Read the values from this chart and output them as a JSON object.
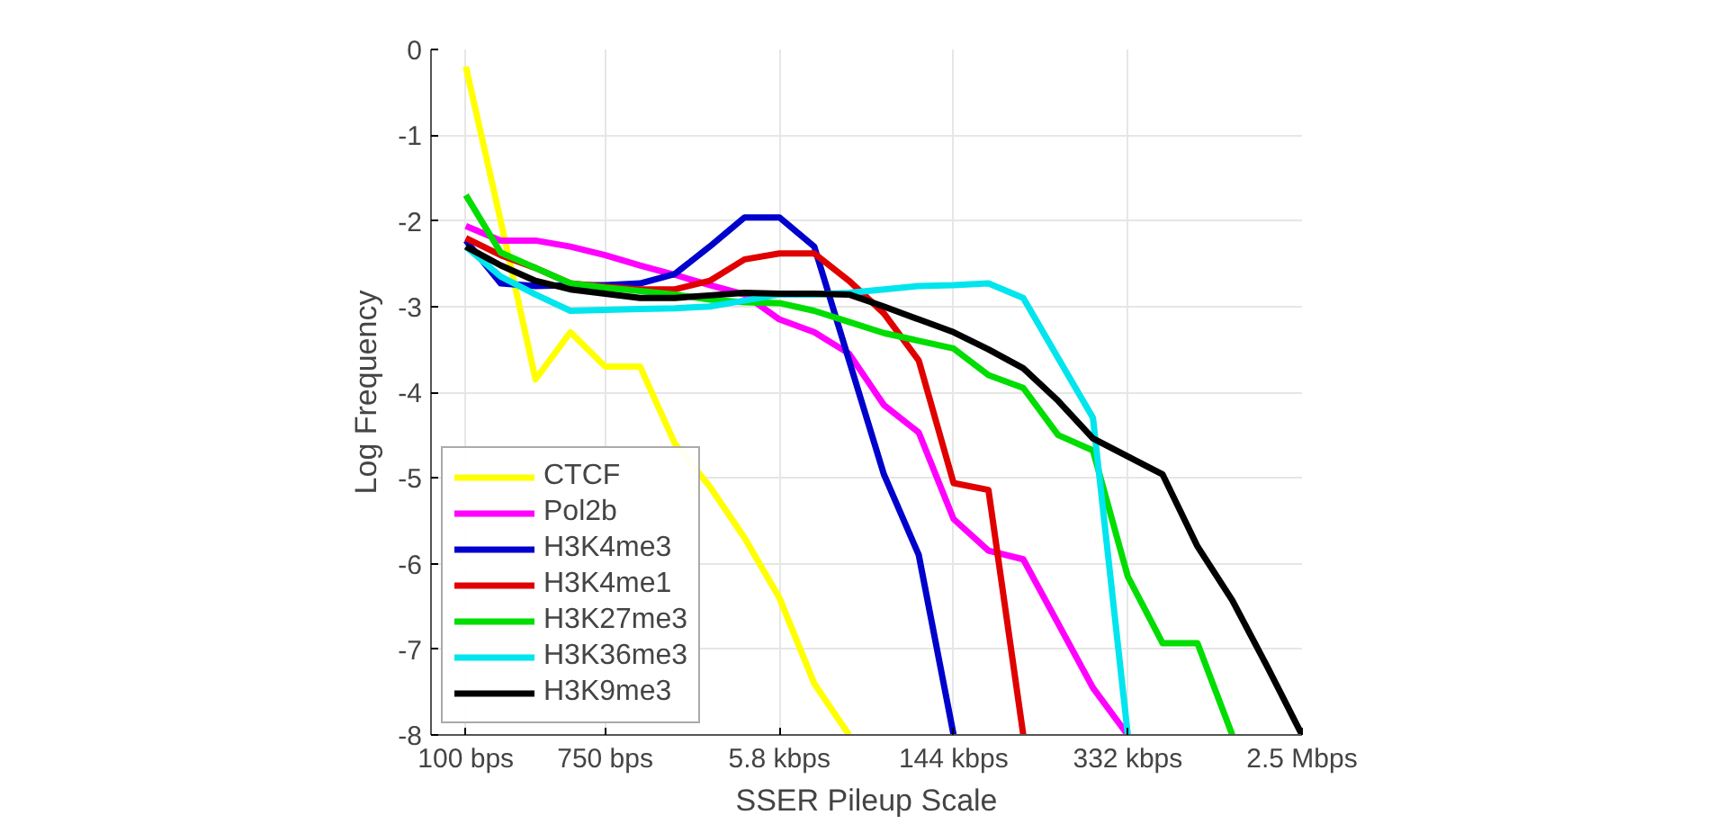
{
  "chart_data": {
    "type": "line",
    "xlabel": "SSER Pileup Scale",
    "ylabel": "Log Frequency",
    "categories": [
      "100 bps",
      null,
      null,
      null,
      "750 bps",
      null,
      null,
      null,
      null,
      "5.8 kbps",
      null,
      null,
      null,
      null,
      "144 kbps",
      null,
      null,
      null,
      null,
      "332 kbps",
      null,
      null,
      null,
      null,
      "2.5 Mbps"
    ],
    "ylim": [
      -8,
      0
    ],
    "yticks": [
      -8,
      -7,
      -6,
      -5,
      -4,
      -3,
      -2,
      -1,
      0
    ],
    "grid": true,
    "legend": "bottom left",
    "line_style": "solid",
    "marker": "none",
    "series": [
      {
        "name": "CTCF",
        "color": "#ffff00",
        "values": [
          -0.2,
          -2.0,
          -3.85,
          -3.3,
          -3.7,
          -3.7,
          -4.6,
          -5.1,
          -5.7,
          -6.4,
          -7.4,
          -8,
          null,
          null,
          null,
          null,
          null,
          null,
          null,
          null,
          null,
          null,
          null,
          null,
          null
        ]
      },
      {
        "name": "Pol2b",
        "color": "#ff00ff",
        "values": [
          -2.06,
          -2.23,
          -2.23,
          -2.3,
          -2.4,
          -2.52,
          -2.63,
          -2.75,
          -2.86,
          -3.15,
          -3.3,
          -3.55,
          -4.15,
          -4.47,
          -5.48,
          -5.85,
          -5.95,
          -6.7,
          -7.45,
          -8,
          null,
          null,
          null,
          null,
          null
        ]
      },
      {
        "name": "H3K4me3",
        "color": "#0000cc",
        "values": [
          -2.23,
          -2.73,
          -2.76,
          -2.75,
          -2.75,
          -2.73,
          -2.62,
          -2.3,
          -1.96,
          -1.96,
          -2.3,
          -3.63,
          -4.96,
          -5.9,
          -8,
          null,
          null,
          null,
          null,
          null,
          null,
          null,
          null,
          null,
          null
        ]
      },
      {
        "name": "H3K4me1",
        "color": "#e00000",
        "values": [
          -2.2,
          -2.4,
          -2.55,
          -2.73,
          -2.77,
          -2.8,
          -2.8,
          -2.7,
          -2.45,
          -2.38,
          -2.38,
          -2.7,
          -3.08,
          -3.63,
          -5.06,
          -5.14,
          -8,
          null,
          null,
          null,
          null,
          null,
          null,
          null,
          null
        ]
      },
      {
        "name": "H3K27me3",
        "color": "#00dd00",
        "values": [
          -1.7,
          -2.37,
          -2.55,
          -2.73,
          -2.78,
          -2.82,
          -2.86,
          -2.92,
          -2.95,
          -2.96,
          -3.05,
          -3.18,
          -3.31,
          -3.4,
          -3.49,
          -3.8,
          -3.95,
          -4.5,
          -4.68,
          -6.15,
          -6.93,
          -6.93,
          -8,
          null,
          null
        ]
      },
      {
        "name": "H3K36me3",
        "color": "#00e5ee",
        "values": [
          -2.3,
          -2.65,
          -2.86,
          -3.05,
          -3.04,
          -3.03,
          -3.02,
          -3.0,
          -2.93,
          -2.86,
          -2.86,
          -2.84,
          -2.8,
          -2.76,
          -2.75,
          -2.73,
          -2.9,
          -3.6,
          -4.3,
          -8,
          null,
          null,
          null,
          null,
          null
        ]
      },
      {
        "name": "H3K9me3",
        "color": "#000000",
        "values": [
          -2.3,
          -2.52,
          -2.7,
          -2.8,
          -2.85,
          -2.9,
          -2.9,
          -2.87,
          -2.84,
          -2.85,
          -2.85,
          -2.86,
          -3.0,
          -3.15,
          -3.3,
          -3.5,
          -3.72,
          -4.1,
          -4.54,
          -4.75,
          -4.96,
          -5.8,
          -6.43,
          -7.2,
          -8
        ]
      }
    ]
  }
}
